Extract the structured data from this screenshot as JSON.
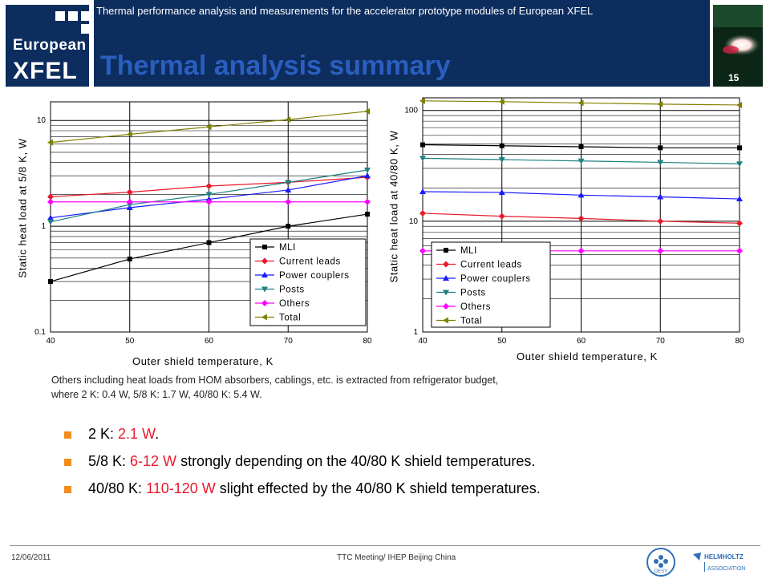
{
  "header": {
    "subtitle": "Thermal performance analysis and measurements for the accelerator prototype modules of European XFEL",
    "title": "Thermal analysis summary",
    "page_number": "15",
    "logo_line1": "European",
    "logo_line2": "XFEL",
    "brand_color": "#0c2d5e",
    "title_color": "#2a5fc0"
  },
  "chart_data": [
    {
      "type": "line",
      "yscale": "log",
      "xlabel": "Outer shield temperature, K",
      "ylabel": "Static heat load at 5/8 K, W",
      "x": [
        40,
        50,
        60,
        70,
        80
      ],
      "xlim": [
        40,
        80
      ],
      "ylim": [
        0.1,
        15
      ],
      "xticks": [
        "40",
        "50",
        "60",
        "70",
        "80"
      ],
      "yticks": [
        {
          "label": "10",
          "v": 10
        },
        {
          "label": "1",
          "v": 1
        },
        {
          "label": "0.1",
          "v": 0.1
        }
      ],
      "grid": true,
      "legend_position": "bottom-right",
      "series": [
        {
          "name": "MLI",
          "color": "#000000",
          "marker": "square",
          "values": [
            0.3,
            0.49,
            0.7,
            1.0,
            1.3
          ]
        },
        {
          "name": "Current leads",
          "color": "#e8192c",
          "marker": "diamond",
          "values": [
            1.9,
            2.1,
            2.4,
            2.6,
            2.9
          ]
        },
        {
          "name": "Power couplers",
          "color": "#1a1aff",
          "marker": "triangle-up",
          "values": [
            1.2,
            1.5,
            1.8,
            2.2,
            3.0
          ]
        },
        {
          "name": "Posts",
          "color": "#1f8080",
          "marker": "triangle-down",
          "values": [
            1.1,
            1.6,
            2.0,
            2.6,
            3.4
          ]
        },
        {
          "name": "Others",
          "color": "#ff00ff",
          "marker": "diamond",
          "values": [
            1.7,
            1.7,
            1.7,
            1.7,
            1.7
          ]
        },
        {
          "name": "Total",
          "color": "#808000",
          "marker": "triangle-left",
          "values": [
            6.2,
            7.4,
            8.7,
            10.2,
            12.2
          ]
        }
      ]
    },
    {
      "type": "line",
      "yscale": "log",
      "xlabel": "Outer shield temperature, K",
      "ylabel": "Static heat load at 40/80 K, W",
      "x": [
        40,
        50,
        60,
        70,
        80
      ],
      "xlim": [
        40,
        80
      ],
      "ylim": [
        1,
        130
      ],
      "xticks": [
        "40",
        "50",
        "60",
        "70",
        "80"
      ],
      "yticks": [
        {
          "label": "100",
          "v": 100
        },
        {
          "label": "10",
          "v": 10
        },
        {
          "label": "1",
          "v": 1
        }
      ],
      "grid": true,
      "legend_position": "bottom-left",
      "series": [
        {
          "name": "MLI",
          "color": "#000000",
          "marker": "square",
          "values": [
            49,
            48,
            47,
            46,
            46
          ]
        },
        {
          "name": "Current leads",
          "color": "#e8192c",
          "marker": "diamond",
          "values": [
            11.8,
            11.1,
            10.6,
            10.0,
            9.6
          ]
        },
        {
          "name": "Power couplers",
          "color": "#1a1aff",
          "marker": "triangle-up",
          "values": [
            18.5,
            18.2,
            17.2,
            16.6,
            15.9
          ]
        },
        {
          "name": "Posts",
          "color": "#1f8080",
          "marker": "triangle-down",
          "values": [
            37,
            36,
            35,
            34,
            33
          ]
        },
        {
          "name": "Others",
          "color": "#ff00ff",
          "marker": "diamond",
          "values": [
            5.4,
            5.4,
            5.4,
            5.4,
            5.4
          ]
        },
        {
          "name": "Total",
          "color": "#808000",
          "marker": "triangle-left",
          "values": [
            122,
            120,
            117,
            114,
            112
          ]
        }
      ]
    }
  ],
  "note": {
    "line1": "Others including heat loads from HOM absorbers, cablings, etc. is extracted from refrigerator budget,",
    "line2": "where 2 K: 0.4 W, 5/8 K: 1.7 W, 40/80 K: 5.4 W."
  },
  "bullets": [
    {
      "prefix": "2 K: ",
      "value": "2.1 W",
      "suffix": "."
    },
    {
      "prefix": "5/8 K: ",
      "value": "6-12 W",
      "suffix": " strongly depending on the 40/80 K shield temperatures."
    },
    {
      "prefix": "40/80 K: ",
      "value": "110-120 W",
      "suffix": " slight effected by the 40/80 K shield temperatures."
    }
  ],
  "bullet_color": "#f28c1e",
  "highlight_color": "#e8192c",
  "footer": {
    "date": "12/06/2011",
    "meeting": "TTC Meeting/ IHEP Beijing China",
    "desy_logo": "DESY",
    "helmholtz_logo_line1": "HELMHOLTZ",
    "helmholtz_logo_line2": "ASSOCIATION"
  }
}
